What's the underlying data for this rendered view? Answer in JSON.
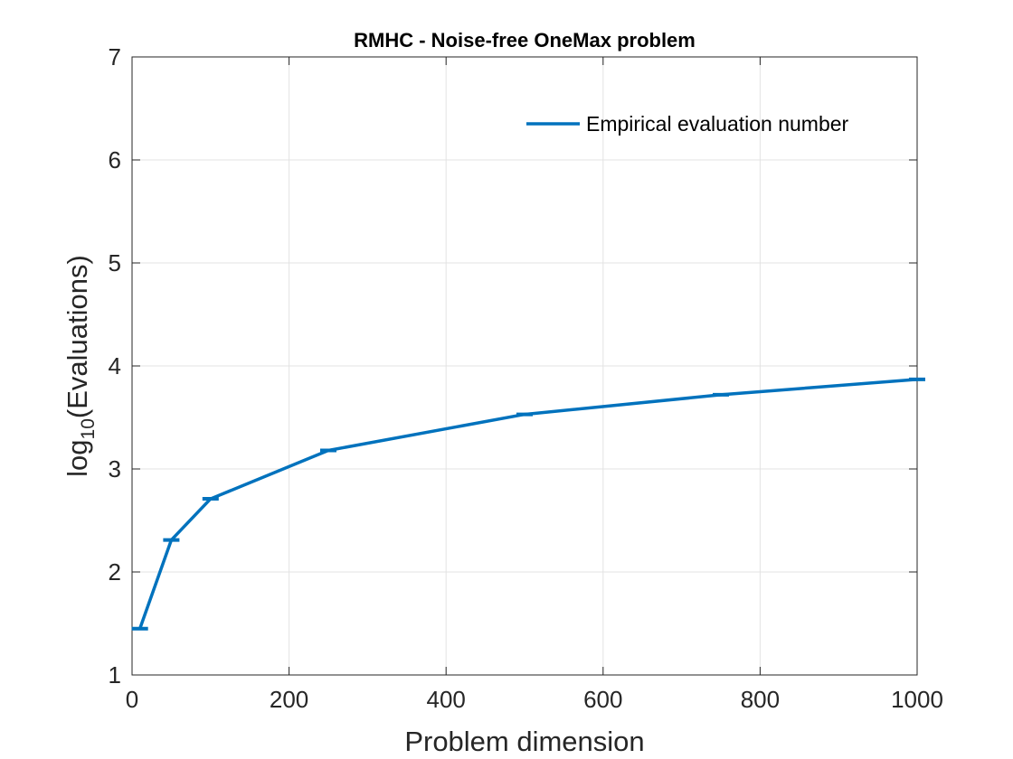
{
  "chart_data": {
    "type": "line",
    "title": "RMHC - Noise-free OneMax problem",
    "xlabel": "Problem dimension",
    "ylabel_base": "log",
    "ylabel_subscript": "10",
    "ylabel_rest": "(Evaluations)",
    "xlim": [
      0,
      1000
    ],
    "ylim": [
      1,
      7
    ],
    "xticks": [
      0,
      200,
      400,
      600,
      800,
      1000
    ],
    "yticks": [
      1,
      2,
      3,
      4,
      5,
      6,
      7
    ],
    "grid": true,
    "legend_position": "top-right",
    "series": [
      {
        "name": "Empirical evaluation number",
        "color": "#0072BD",
        "x": [
          10,
          50,
          100,
          250,
          500,
          750,
          1000
        ],
        "y": [
          1.45,
          2.31,
          2.71,
          3.18,
          3.53,
          3.72,
          3.87
        ]
      }
    ]
  }
}
